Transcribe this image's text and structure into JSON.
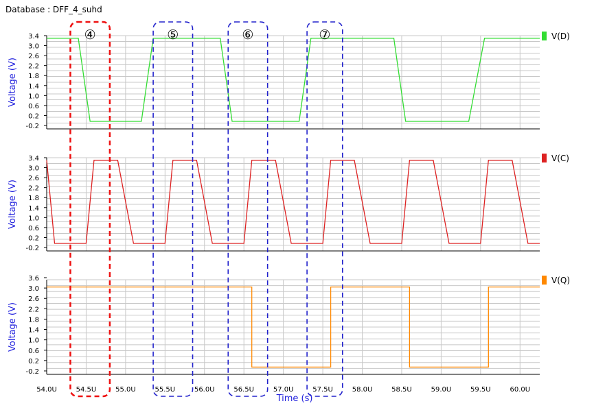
{
  "database_label": "Database : DFF_4_suhd",
  "colors": {
    "grid": "#c8c8c8",
    "axis_label": "#2222dd",
    "highlight_red": "#ee1111",
    "highlight_blue": "#2222cc"
  },
  "chart_data": {
    "type": "line",
    "xlabel": "Time (s)",
    "xlim": [
      54.0,
      60.25
    ],
    "x_ticks": [
      "54.0U",
      "54.5U",
      "55.0U",
      "55.5U",
      "56.0U",
      "56.5U",
      "57.0U",
      "57.5U",
      "58.0U",
      "58.5U",
      "59.0U",
      "59.5U",
      "60.0U"
    ],
    "x_tick_values": [
      54.0,
      54.5,
      55.0,
      55.5,
      56.0,
      56.5,
      57.0,
      57.5,
      58.0,
      58.5,
      59.0,
      59.5,
      60.0
    ],
    "panels": [
      {
        "ylabel": "Voltage (V)",
        "ylim": [
          -0.3,
          3.4
        ],
        "y_ticks": [
          "3.4",
          "3.0",
          "2.6",
          "2.2",
          "1.8",
          "1.4",
          "1.0",
          "0.6",
          "0.2",
          "-0.2"
        ],
        "series": {
          "name": "V(D)",
          "color": "#33dd33",
          "points": [
            [
              54.0,
              3.3
            ],
            [
              54.4,
              3.3
            ],
            [
              54.55,
              0.0
            ],
            [
              54.8,
              0.0
            ],
            [
              55.2,
              0.0
            ],
            [
              55.35,
              3.3
            ],
            [
              55.5,
              3.3
            ],
            [
              56.2,
              3.3
            ],
            [
              56.35,
              0.0
            ],
            [
              56.8,
              0.0
            ],
            [
              57.2,
              0.0
            ],
            [
              57.35,
              3.3
            ],
            [
              58.4,
              3.3
            ],
            [
              58.55,
              0.0
            ],
            [
              59.35,
              0.0
            ],
            [
              59.55,
              3.3
            ],
            [
              60.25,
              3.3
            ]
          ]
        }
      },
      {
        "ylabel": "Voltage (V)",
        "ylim": [
          -0.3,
          3.4
        ],
        "y_ticks": [
          "3.4",
          "3.0",
          "2.6",
          "2.2",
          "1.8",
          "1.4",
          "1.0",
          "0.6",
          "0.2",
          "-0.2"
        ],
        "series": {
          "name": "V(C)",
          "color": "#dd2222",
          "points": [
            [
              54.0,
              3.3
            ],
            [
              54.1,
              0.0
            ],
            [
              54.5,
              0.0
            ],
            [
              54.6,
              3.3
            ],
            [
              54.9,
              3.3
            ],
            [
              55.1,
              0.0
            ],
            [
              55.5,
              0.0
            ],
            [
              55.6,
              3.3
            ],
            [
              55.9,
              3.3
            ],
            [
              56.1,
              0.0
            ],
            [
              56.5,
              0.0
            ],
            [
              56.6,
              3.3
            ],
            [
              56.9,
              3.3
            ],
            [
              57.1,
              0.0
            ],
            [
              57.5,
              0.0
            ],
            [
              57.6,
              3.3
            ],
            [
              57.9,
              3.3
            ],
            [
              58.1,
              0.0
            ],
            [
              58.5,
              0.0
            ],
            [
              58.6,
              3.3
            ],
            [
              58.9,
              3.3
            ],
            [
              59.1,
              0.0
            ],
            [
              59.5,
              0.0
            ],
            [
              59.6,
              3.3
            ],
            [
              59.9,
              3.3
            ],
            [
              60.1,
              0.0
            ],
            [
              60.25,
              0.0
            ]
          ]
        }
      },
      {
        "ylabel": "Voltage (V)",
        "ylim": [
          -0.3,
          3.6
        ],
        "y_ticks": [
          "3.6",
          "3.0",
          "2.6",
          "2.2",
          "1.8",
          "1.4",
          "1.0",
          "0.6",
          "0.2",
          "-0.2"
        ],
        "series": {
          "name": "V(Q)",
          "color": "#ff8800",
          "points": [
            [
              54.0,
              3.3
            ],
            [
              56.6,
              3.3
            ],
            [
              56.6,
              0.0
            ],
            [
              57.6,
              0.0
            ],
            [
              57.6,
              3.3
            ],
            [
              58.6,
              3.3
            ],
            [
              58.6,
              0.0
            ],
            [
              59.6,
              0.0
            ],
            [
              59.6,
              3.3
            ],
            [
              60.25,
              3.3
            ]
          ]
        }
      }
    ],
    "annotations": [
      {
        "label": "④",
        "x_start": 54.3,
        "x_end": 54.8,
        "color": "red"
      },
      {
        "label": "⑤",
        "x_start": 55.35,
        "x_end": 55.85,
        "color": "blue"
      },
      {
        "label": "⑥",
        "x_start": 56.3,
        "x_end": 56.8,
        "color": "blue"
      },
      {
        "label": "⑦",
        "x_start": 57.3,
        "x_end": 57.75,
        "color": "blue"
      }
    ]
  }
}
